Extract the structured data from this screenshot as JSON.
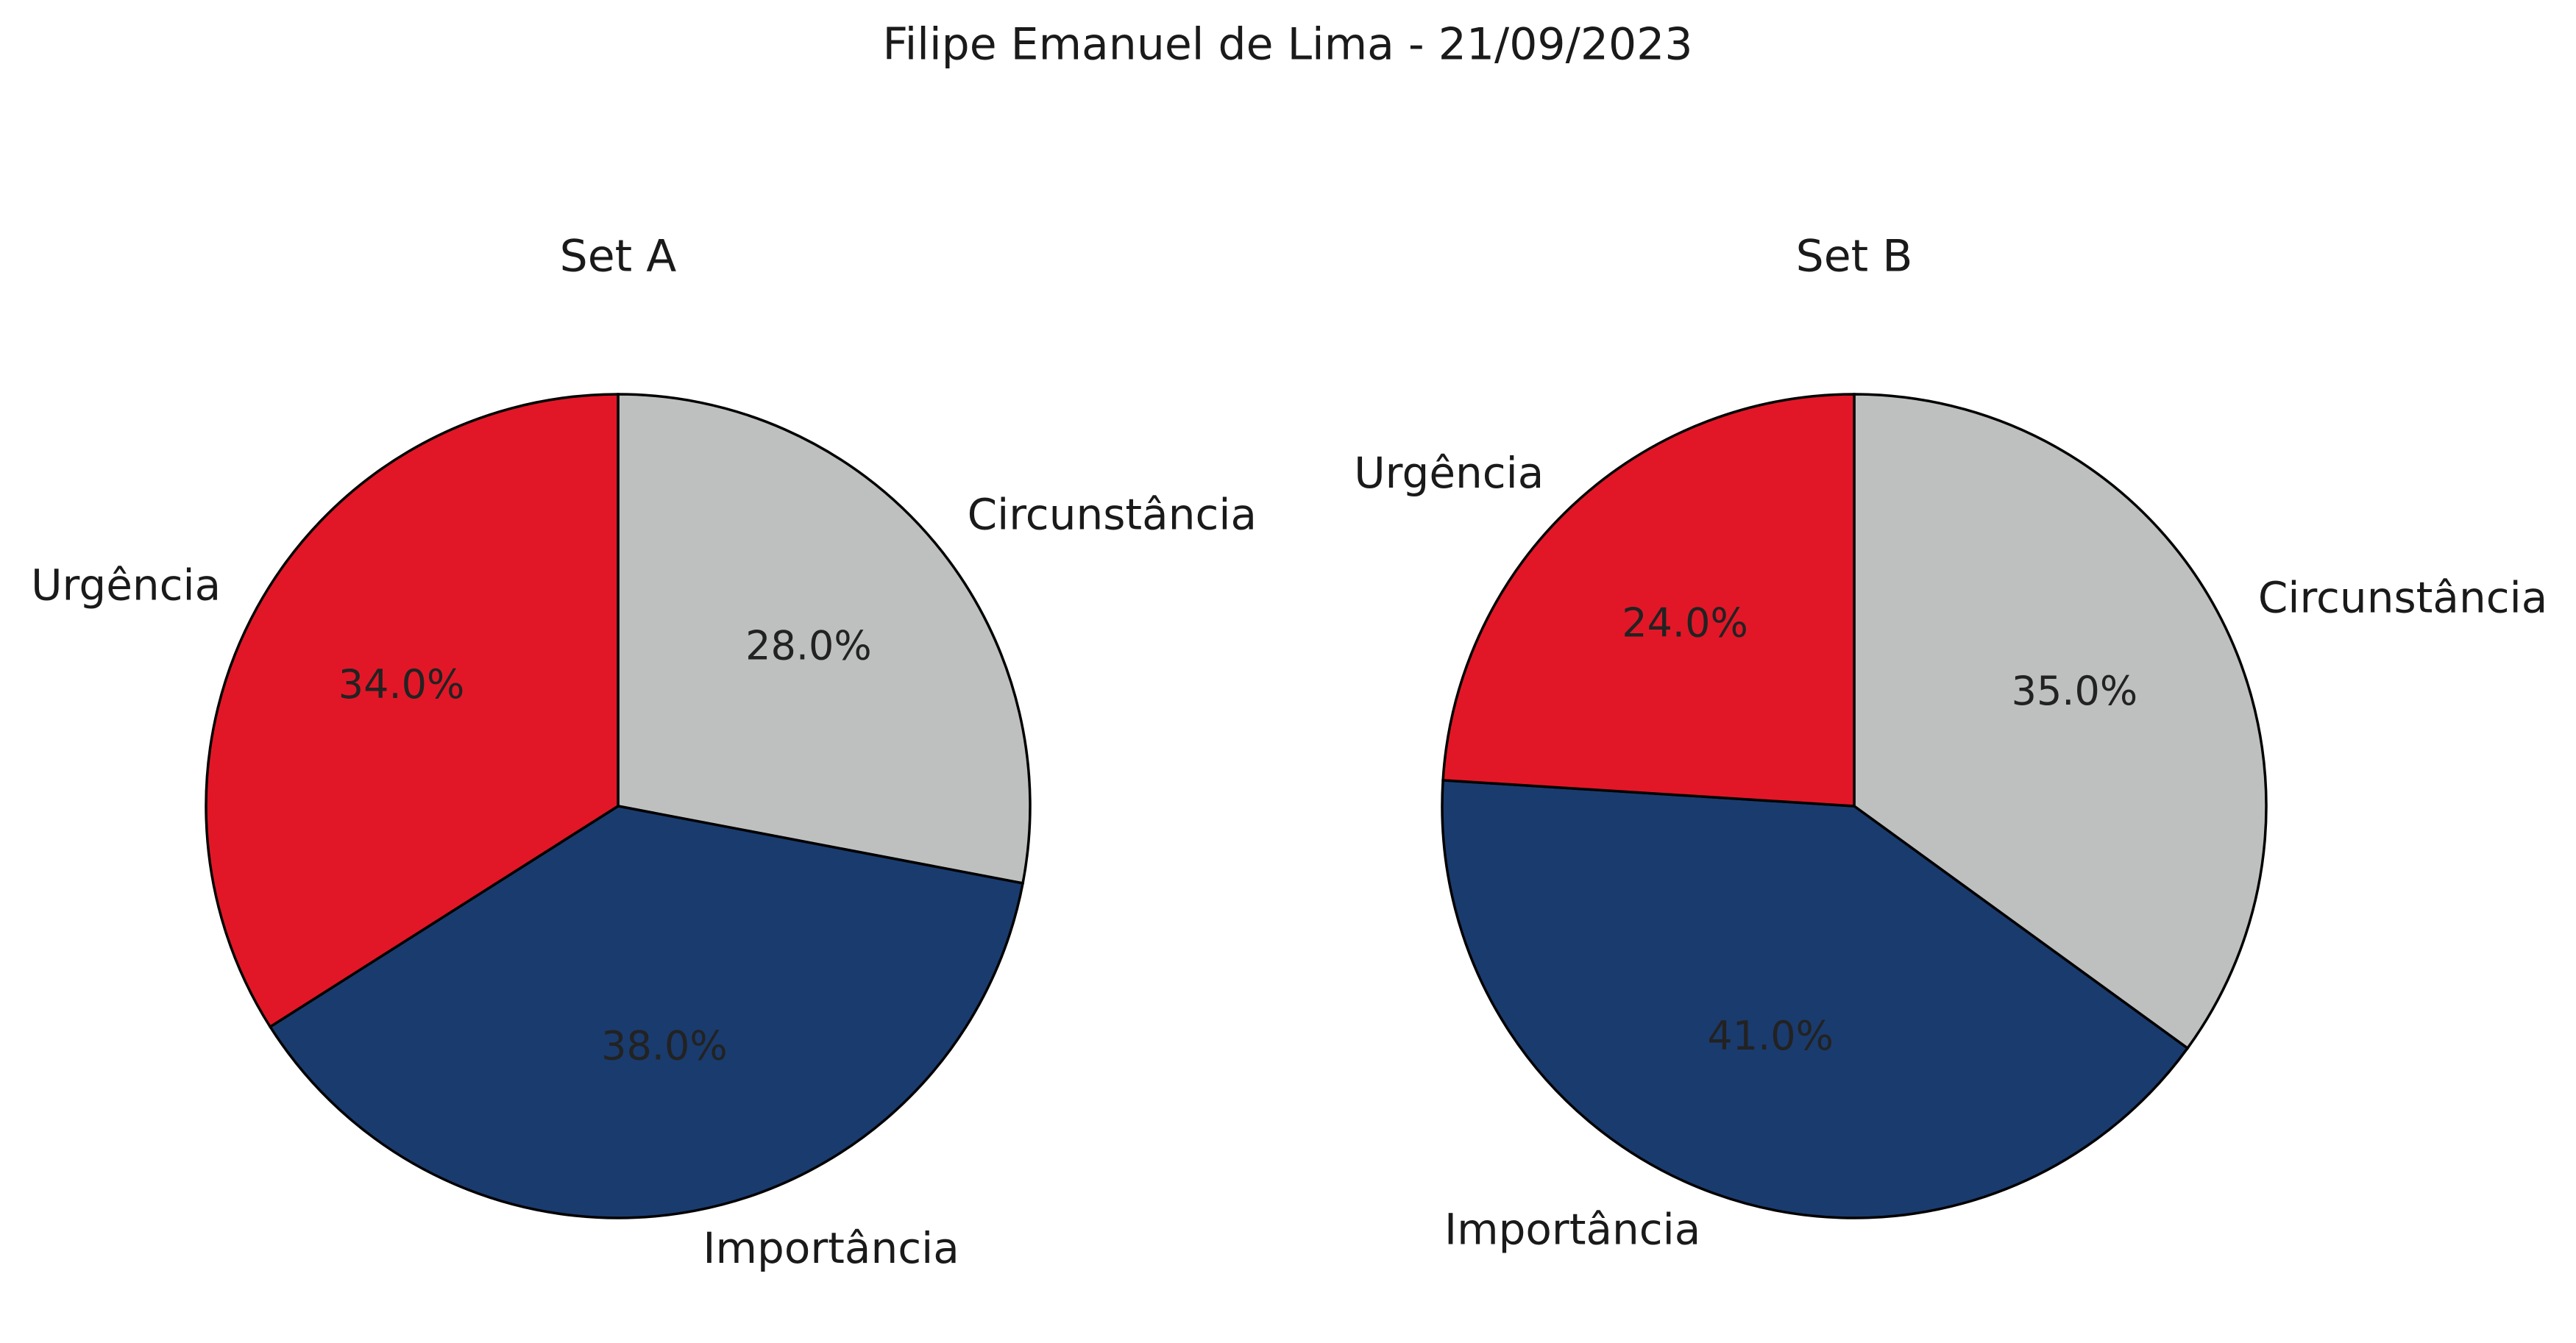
{
  "chart_data": {
    "type": "pie",
    "title": "Filipe Emanuel de Lima - 21/09/2023",
    "start_angle_deg": 90,
    "direction": "clockwise",
    "label_format": "percent_one_decimal",
    "colors": {
      "Circunstância": "#bebfbf",
      "Importância": "#1a3b6e",
      "Urgência": "#e11727"
    },
    "charts": [
      {
        "subtitle": "Set A",
        "slices": [
          {
            "label": "Circunstância",
            "value": 28.0,
            "pct_text": "28.0%"
          },
          {
            "label": "Importância",
            "value": 38.0,
            "pct_text": "38.0%"
          },
          {
            "label": "Urgência",
            "value": 34.0,
            "pct_text": "34.0%"
          }
        ]
      },
      {
        "subtitle": "Set B",
        "slices": [
          {
            "label": "Circunstância",
            "value": 35.0,
            "pct_text": "35.0%"
          },
          {
            "label": "Importância",
            "value": 41.0,
            "pct_text": "41.0%"
          },
          {
            "label": "Urgência",
            "value": 24.0,
            "pct_text": "24.0%"
          }
        ]
      }
    ]
  }
}
